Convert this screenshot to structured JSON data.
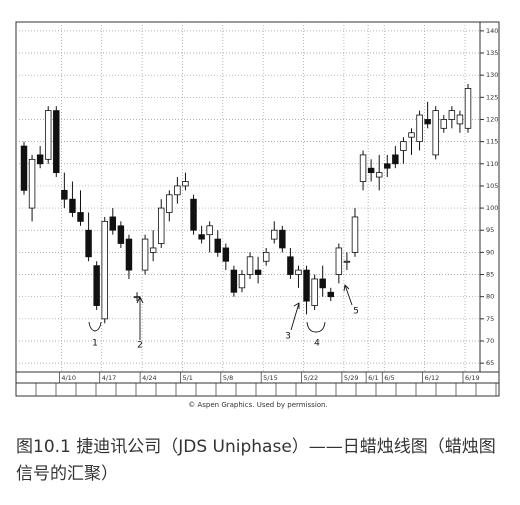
{
  "chart_data": {
    "type": "candlestick",
    "categories": [
      null,
      null,
      null,
      null,
      null,
      "4/10",
      null,
      null,
      null,
      null,
      "4/17",
      null,
      null,
      null,
      null,
      "4/24",
      null,
      null,
      null,
      null,
      "5/1",
      null,
      null,
      null,
      null,
      "5/8",
      null,
      null,
      null,
      null,
      "5/15",
      null,
      null,
      null,
      null,
      "5/22",
      null,
      null,
      null,
      null,
      "5/29",
      null,
      null,
      "6/1",
      null,
      "6/5",
      null,
      null,
      null,
      null,
      "6/12",
      null,
      null,
      null,
      null,
      "6/19"
    ],
    "open": [
      114,
      100,
      112,
      111,
      122,
      104,
      102,
      99,
      95,
      87,
      75,
      98,
      96,
      93,
      80,
      86,
      90,
      92,
      99,
      103,
      105,
      102,
      94,
      94,
      93,
      91,
      86,
      82,
      85,
      86,
      88,
      93,
      95,
      89,
      85,
      86,
      78,
      84,
      81,
      85,
      88,
      90,
      106,
      109,
      107,
      110,
      112,
      113,
      116,
      115,
      120,
      112,
      118,
      120,
      119,
      118
    ],
    "high": [
      115,
      112,
      114,
      123,
      123,
      108,
      106,
      104,
      99,
      88,
      98,
      100,
      97,
      94,
      81,
      94,
      95,
      102,
      104,
      107,
      108,
      103,
      96,
      97,
      95,
      92,
      87,
      86,
      90,
      89,
      91,
      97,
      96,
      91,
      87,
      87,
      85,
      87,
      82,
      92,
      90,
      100,
      113,
      111,
      112,
      112,
      114,
      116,
      118,
      122,
      124,
      123,
      121,
      123,
      122,
      128
    ],
    "low": [
      103,
      97,
      109,
      110,
      107,
      100,
      98,
      96,
      88,
      77,
      74,
      94,
      91,
      84,
      79,
      85,
      88,
      91,
      97,
      101,
      104,
      94,
      92,
      90,
      89,
      86,
      80,
      81,
      84,
      83,
      87,
      92,
      90,
      84,
      82,
      76,
      77,
      80,
      79,
      83,
      86,
      89,
      104,
      106,
      104,
      107,
      109,
      110,
      112,
      113,
      118,
      111,
      117,
      118,
      117,
      117
    ],
    "close": [
      104,
      111,
      110,
      122,
      108,
      102,
      99,
      97,
      89,
      78,
      97,
      95,
      92,
      86,
      80,
      93,
      91,
      100,
      103,
      105,
      106,
      95,
      93,
      96,
      90,
      88,
      81,
      85,
      89,
      85,
      90,
      95,
      91,
      85,
      86,
      79,
      84,
      82,
      80,
      91,
      88,
      98,
      112,
      108,
      108,
      109,
      110,
      115,
      117,
      121,
      119,
      122,
      120,
      122,
      121,
      127
    ],
    "up_color": "#ffffff",
    "down_color": "#111111",
    "ylim": [
      63,
      142
    ],
    "yticks": [
      65,
      70,
      75,
      80,
      85,
      90,
      95,
      100,
      105,
      110,
      115,
      120,
      125,
      130,
      135,
      140
    ],
    "grid": true,
    "annotations": [
      "1",
      "2",
      "3",
      "4",
      "5"
    ],
    "credit": "© Aspen Graphics. Used by permission.",
    "caption": "图10.1 捷迪讯公司（JDS Uniphase）——日蜡烛线图（蜡烛图信号的汇聚）"
  }
}
